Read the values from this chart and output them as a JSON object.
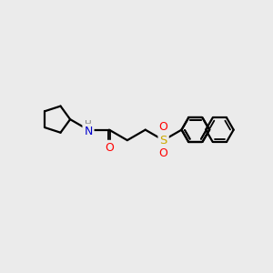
{
  "background_color": "#ebebeb",
  "bond_color": "#000000",
  "atom_colors": {
    "N": "#0000cd",
    "O": "#ff0000",
    "S": "#ccaa00",
    "C": "#000000",
    "H": "#808080"
  },
  "figsize": [
    3.0,
    3.0
  ],
  "dpi": 100
}
